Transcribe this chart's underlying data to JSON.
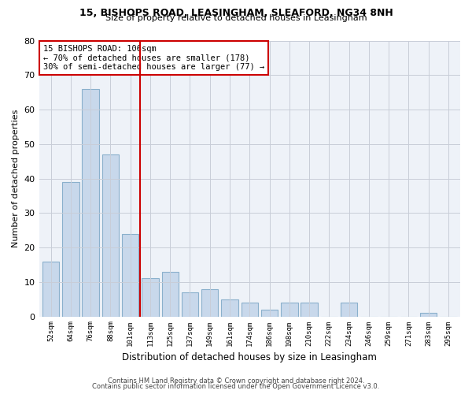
{
  "title1": "15, BISHOPS ROAD, LEASINGHAM, SLEAFORD, NG34 8NH",
  "title2": "Size of property relative to detached houses in Leasingham",
  "xlabel": "Distribution of detached houses by size in Leasingham",
  "ylabel": "Number of detached properties",
  "categories": [
    "52sqm",
    "64sqm",
    "76sqm",
    "88sqm",
    "101sqm",
    "113sqm",
    "125sqm",
    "137sqm",
    "149sqm",
    "161sqm",
    "174sqm",
    "186sqm",
    "198sqm",
    "210sqm",
    "222sqm",
    "234sqm",
    "246sqm",
    "259sqm",
    "271sqm",
    "283sqm",
    "295sqm"
  ],
  "values": [
    16,
    39,
    66,
    47,
    24,
    11,
    13,
    7,
    8,
    5,
    4,
    2,
    4,
    4,
    0,
    4,
    0,
    0,
    0,
    1,
    0
  ],
  "bar_color": "#c8d8eb",
  "bar_edge_color": "#8ab0cc",
  "vline_x": 4.5,
  "vline_color": "#cc0000",
  "ylim": [
    0,
    80
  ],
  "yticks": [
    0,
    10,
    20,
    30,
    40,
    50,
    60,
    70,
    80
  ],
  "annotation_text": "15 BISHOPS ROAD: 106sqm\n← 70% of detached houses are smaller (178)\n30% of semi-detached houses are larger (77) →",
  "footer1": "Contains HM Land Registry data © Crown copyright and database right 2024.",
  "footer2": "Contains public sector information licensed under the Open Government Licence v3.0.",
  "background_color": "#ffffff",
  "plot_background_color": "#eef2f8",
  "grid_color": "#c8cdd8"
}
